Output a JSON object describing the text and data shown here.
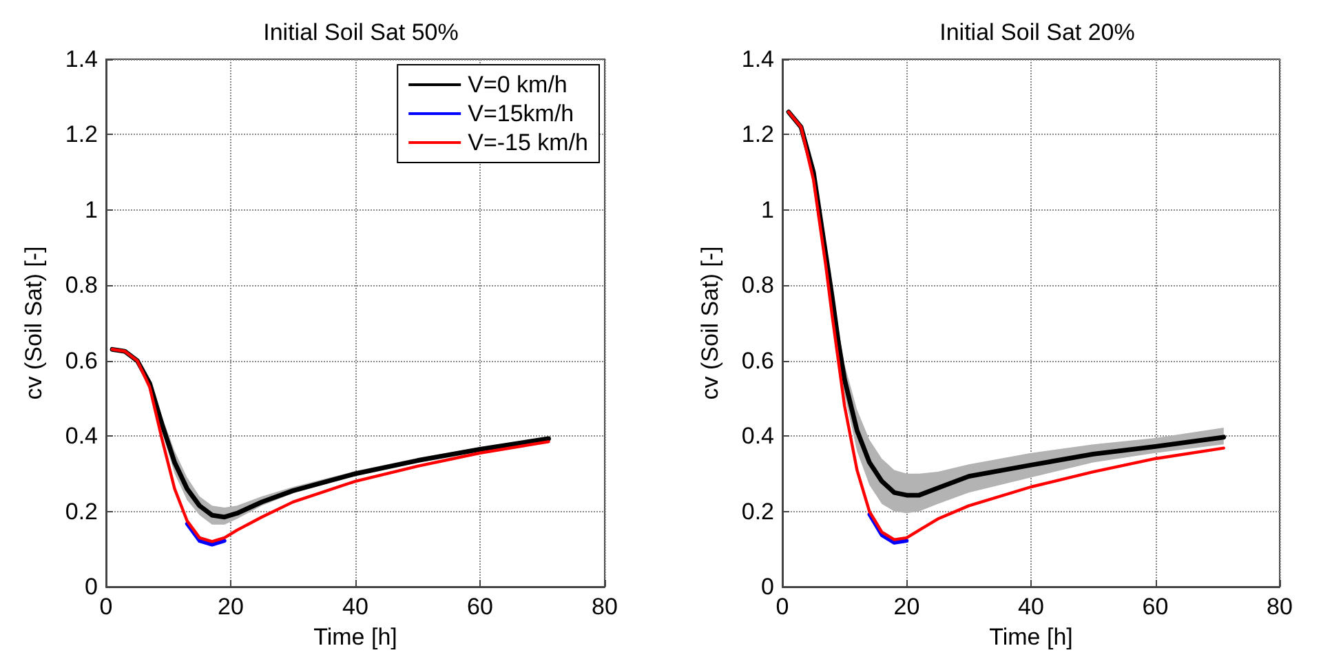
{
  "chart_data": [
    {
      "type": "line",
      "title": "Initial Soil Sat 50%",
      "xlabel": "Time [h]",
      "ylabel": "cv (Soil Sat) [-]",
      "xlim": [
        0,
        80
      ],
      "xticks": [
        0,
        20,
        40,
        60,
        80
      ],
      "ylim": [
        0,
        1.4
      ],
      "yticks": [
        0,
        0.2,
        0.4,
        0.6,
        0.8,
        1,
        1.2,
        1.4
      ],
      "grid": true,
      "legend": "top right",
      "marker": "none",
      "line_style": "solid",
      "series": [
        {
          "name": "V=0 km/h",
          "color": "#000000",
          "x": [
            1,
            3,
            5,
            7,
            9,
            11,
            13,
            15,
            17,
            19,
            21,
            25,
            30,
            40,
            50,
            60,
            71
          ],
          "values": [
            0.63,
            0.625,
            0.6,
            0.54,
            0.43,
            0.33,
            0.26,
            0.215,
            0.19,
            0.185,
            0.195,
            0.225,
            0.255,
            0.3,
            0.335,
            0.365,
            0.393
          ],
          "lower": [
            0.63,
            0.625,
            0.6,
            0.53,
            0.41,
            0.3,
            0.23,
            0.19,
            0.165,
            0.165,
            0.18,
            0.215,
            0.248,
            0.295,
            0.33,
            0.362,
            0.388
          ],
          "upper": [
            0.63,
            0.625,
            0.6,
            0.55,
            0.45,
            0.36,
            0.29,
            0.24,
            0.215,
            0.21,
            0.215,
            0.24,
            0.265,
            0.307,
            0.342,
            0.37,
            0.398
          ]
        },
        {
          "name": "V=15km/h",
          "color": "#0000ff",
          "x": [
            13,
            15,
            17,
            19
          ],
          "values": [
            0.167,
            0.122,
            0.112,
            0.122
          ]
        },
        {
          "name": "V=-15 km/h",
          "color": "#ff0000",
          "x": [
            1,
            3,
            5,
            7,
            9,
            11,
            13,
            15,
            17,
            19,
            21,
            25,
            30,
            40,
            50,
            60,
            71
          ],
          "values": [
            0.63,
            0.625,
            0.6,
            0.53,
            0.39,
            0.26,
            0.175,
            0.13,
            0.12,
            0.13,
            0.15,
            0.185,
            0.225,
            0.28,
            0.32,
            0.355,
            0.385
          ]
        }
      ]
    },
    {
      "type": "line",
      "title": "Initial Soil Sat 20%",
      "xlabel": "Time [h]",
      "ylabel": "cv (Soil Sat) [-]",
      "xlim": [
        0,
        80
      ],
      "xticks": [
        0,
        20,
        40,
        60,
        80
      ],
      "ylim": [
        0,
        1.4
      ],
      "yticks": [
        0,
        0.2,
        0.4,
        0.6,
        0.8,
        1,
        1.2,
        1.4
      ],
      "grid": true,
      "marker": "none",
      "line_style": "solid",
      "series": [
        {
          "color": "#000000",
          "x": [
            1,
            3,
            5,
            7,
            8,
            9,
            10,
            12,
            14,
            16,
            18,
            20,
            22,
            25,
            30,
            40,
            50,
            60,
            71
          ],
          "values": [
            1.26,
            1.22,
            1.1,
            0.88,
            0.77,
            0.65,
            0.55,
            0.415,
            0.33,
            0.28,
            0.25,
            0.243,
            0.243,
            0.262,
            0.293,
            0.323,
            0.352,
            0.372,
            0.397
          ],
          "lower": [
            1.26,
            1.22,
            1.1,
            0.87,
            0.75,
            0.62,
            0.51,
            0.36,
            0.27,
            0.22,
            0.2,
            0.195,
            0.2,
            0.22,
            0.25,
            0.29,
            0.33,
            0.355,
            0.378
          ],
          "upper": [
            1.26,
            1.22,
            1.1,
            0.89,
            0.79,
            0.68,
            0.59,
            0.47,
            0.39,
            0.34,
            0.31,
            0.3,
            0.3,
            0.305,
            0.325,
            0.355,
            0.378,
            0.395,
            0.422
          ]
        },
        {
          "color": "#0000ff",
          "x": [
            14,
            16,
            18,
            20
          ],
          "values": [
            0.192,
            0.137,
            0.117,
            0.122
          ]
        },
        {
          "color": "#ff0000",
          "x": [
            1,
            3,
            5,
            7,
            8,
            9,
            10,
            12,
            14,
            16,
            18,
            20,
            22,
            25,
            30,
            40,
            50,
            60,
            71
          ],
          "values": [
            1.26,
            1.22,
            1.08,
            0.85,
            0.72,
            0.6,
            0.48,
            0.31,
            0.2,
            0.145,
            0.125,
            0.13,
            0.15,
            0.18,
            0.215,
            0.265,
            0.305,
            0.34,
            0.368
          ]
        }
      ]
    }
  ]
}
